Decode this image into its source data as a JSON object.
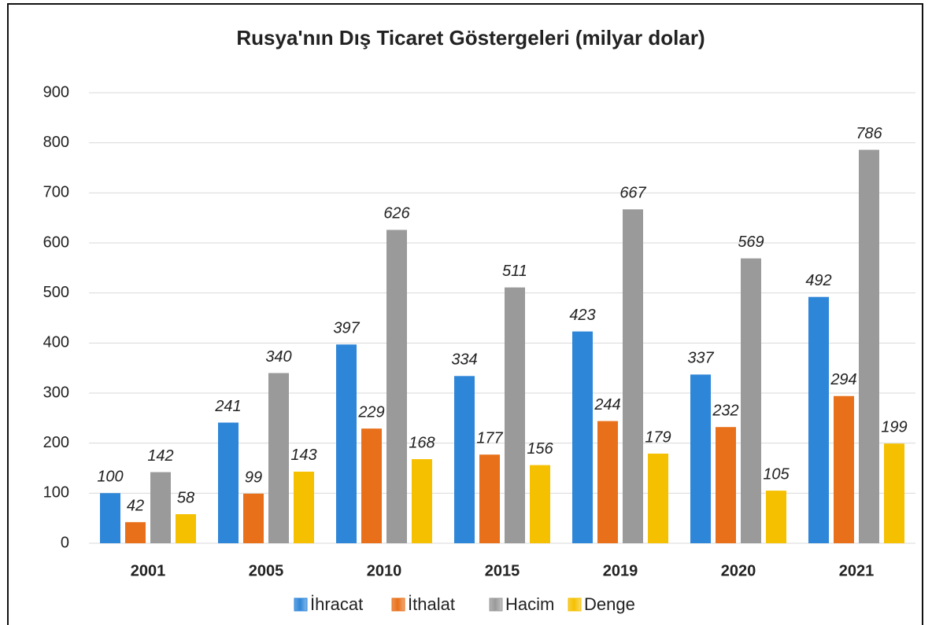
{
  "chart_data": {
    "type": "bar",
    "title": "Rusya'nın Dış Ticaret Göstergeleri  (milyar dolar)",
    "categories": [
      "2001",
      "2005",
      "2010",
      "2015",
      "2019",
      "2020",
      "2021"
    ],
    "series": [
      {
        "name": "İhracat",
        "color": "#2e86d8",
        "values": [
          100,
          241,
          397,
          334,
          423,
          337,
          492
        ]
      },
      {
        "name": "İthalat",
        "color": "#e8701a",
        "values": [
          42,
          99,
          229,
          177,
          244,
          232,
          294
        ]
      },
      {
        "name": "Hacim",
        "color": "#9a9a9a",
        "values": [
          142,
          340,
          626,
          511,
          667,
          569,
          786
        ]
      },
      {
        "name": "Denge",
        "color": "#f5c000",
        "values": [
          58,
          143,
          168,
          156,
          179,
          105,
          199
        ]
      }
    ],
    "ylim": [
      0,
      900
    ],
    "yticks": [
      0,
      100,
      200,
      300,
      400,
      500,
      600,
      700,
      800,
      900
    ],
    "grid": true,
    "legend": "bottom"
  }
}
